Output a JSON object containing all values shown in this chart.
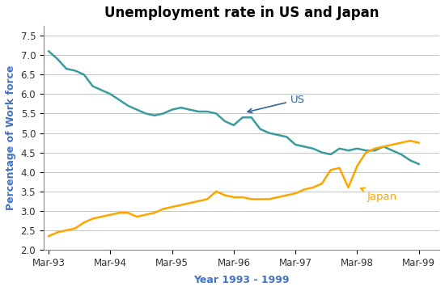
{
  "title": "Unemployment rate in US and Japan",
  "xlabel": "Year 1993 - 1999",
  "ylabel": "Percentage of Work force",
  "ylim": [
    2.0,
    7.75
  ],
  "yticks": [
    2.0,
    2.5,
    3.0,
    3.5,
    4.0,
    4.5,
    5.0,
    5.5,
    6.0,
    6.5,
    7.0,
    7.5
  ],
  "us_color": "#3A9C9C",
  "japan_color": "#FFA500",
  "us_label": "US",
  "japan_label": "Japan",
  "label_color_us": "#336699",
  "label_color_japan": "#FFA500",
  "axis_text_color": "#555555",
  "xlabel_color": "#4472C4",
  "ylabel_color": "#4472C4",
  "x_tick_labels": [
    "Mar-93",
    "Mar-94",
    "Mar-95",
    "Mar-96",
    "Mar-97",
    "Mar-98",
    "Mar-99"
  ],
  "us_data": [
    7.1,
    6.9,
    6.65,
    6.6,
    6.5,
    6.2,
    6.1,
    6.0,
    5.85,
    5.7,
    5.6,
    5.5,
    5.45,
    5.5,
    5.6,
    5.65,
    5.6,
    5.55,
    5.55,
    5.5,
    5.3,
    5.2,
    5.4,
    5.4,
    5.1,
    5.0,
    4.95,
    4.9,
    4.7,
    4.65,
    4.6,
    4.5,
    4.45,
    4.6,
    4.55,
    4.6,
    4.55,
    4.55,
    4.65,
    4.55,
    4.45,
    4.3,
    4.2
  ],
  "japan_data": [
    2.35,
    2.45,
    2.5,
    2.55,
    2.7,
    2.8,
    2.85,
    2.9,
    2.95,
    2.95,
    2.85,
    2.9,
    2.95,
    3.05,
    3.1,
    3.15,
    3.2,
    3.25,
    3.3,
    3.5,
    3.4,
    3.35,
    3.35,
    3.3,
    3.3,
    3.3,
    3.35,
    3.4,
    3.45,
    3.55,
    3.6,
    3.7,
    4.05,
    4.1,
    3.6,
    4.15,
    4.5,
    4.6,
    4.65,
    4.7,
    4.75,
    4.8,
    4.75
  ],
  "title_fontsize": 12,
  "axis_label_fontsize": 9,
  "tick_fontsize": 8.5
}
